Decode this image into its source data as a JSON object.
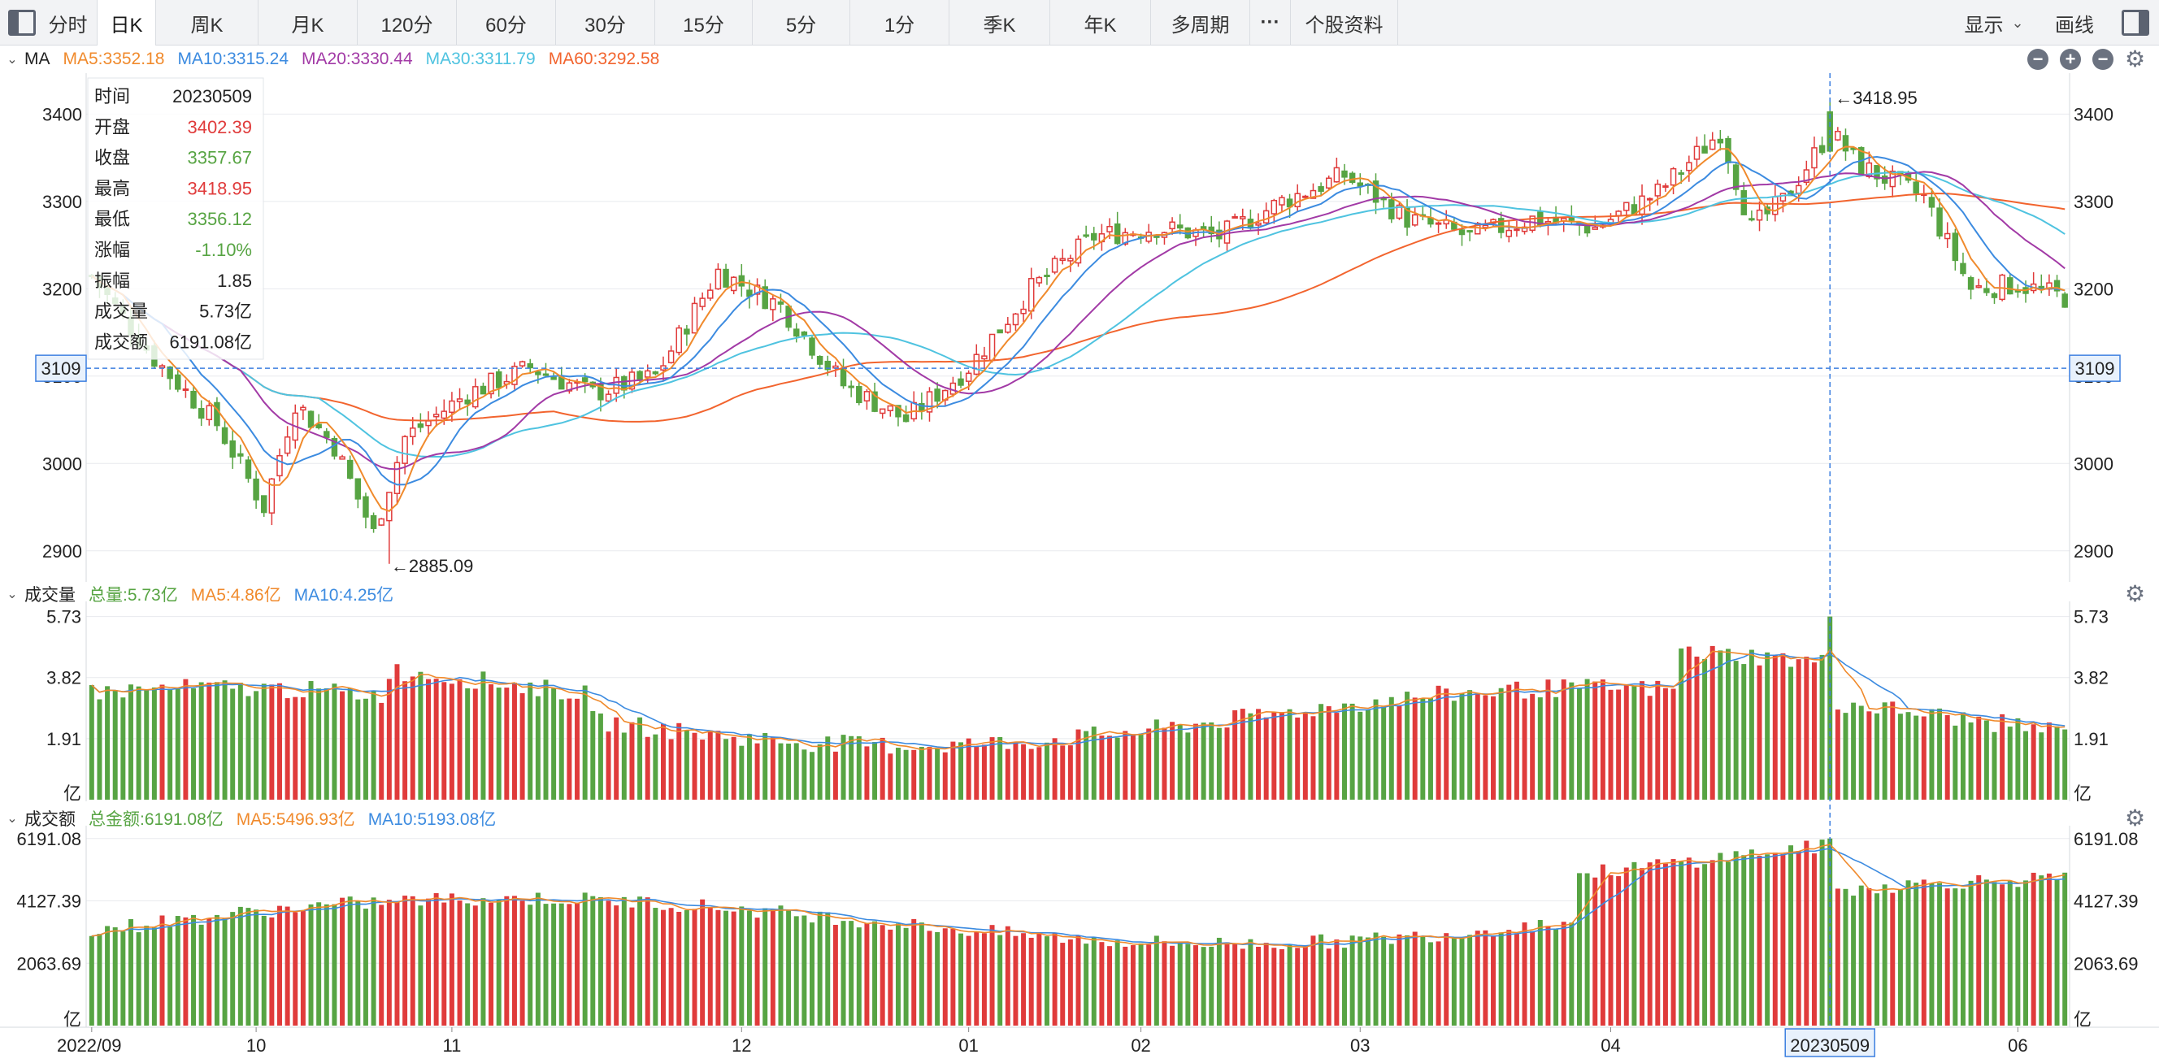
{
  "toolbar": {
    "tabs": [
      {
        "label": "分时"
      },
      {
        "label": "日K",
        "active": true
      },
      {
        "label": "周K"
      },
      {
        "label": "月K"
      },
      {
        "label": "120分"
      },
      {
        "label": "60分"
      },
      {
        "label": "30分"
      },
      {
        "label": "15分"
      },
      {
        "label": "5分"
      },
      {
        "label": "1分"
      },
      {
        "label": "季K"
      },
      {
        "label": "年K"
      },
      {
        "label": "多周期"
      },
      {
        "label": "···"
      },
      {
        "label": "个股资料"
      }
    ],
    "display_label": "显示",
    "draw_label": "画线"
  },
  "colors": {
    "up": "#e03b3b",
    "down": "#57a443",
    "ma5": "#f08a2c",
    "ma10": "#3c8be0",
    "ma20": "#a23aa6",
    "ma30": "#4fc3e0",
    "ma60": "#f2642e",
    "crosshair": "#3c7fe0",
    "grid": "#e8eaee"
  },
  "price_panel": {
    "indicator": "MA",
    "legend": [
      {
        "text": "MA5:3352.18",
        "color": "ma5"
      },
      {
        "text": "MA10:3315.24",
        "color": "ma10"
      },
      {
        "text": "MA20:3330.44",
        "color": "ma20"
      },
      {
        "text": "MA30:3311.79",
        "color": "ma30"
      },
      {
        "text": "MA60:3292.58",
        "color": "ma60"
      }
    ],
    "y_ticks": [
      "3400",
      "3300",
      "3200",
      "3100",
      "3000",
      "2900"
    ],
    "crosshair_price": "3109",
    "high_label": "←3418.95",
    "low_label": "←2885.09",
    "info": [
      {
        "label": "时间",
        "value": "20230509",
        "color": "#222"
      },
      {
        "label": "开盘",
        "value": "3402.39",
        "color": "#e03b3b"
      },
      {
        "label": "收盘",
        "value": "3357.67",
        "color": "#57a443"
      },
      {
        "label": "最高",
        "value": "3418.95",
        "color": "#e03b3b"
      },
      {
        "label": "最低",
        "value": "3356.12",
        "color": "#57a443"
      },
      {
        "label": "涨幅",
        "value": "-1.10%",
        "color": "#57a443"
      },
      {
        "label": "振幅",
        "value": "1.85",
        "color": "#222"
      },
      {
        "label": "成交量",
        "value": "5.73亿",
        "color": "#222"
      },
      {
        "label": "成交额",
        "value": "6191.08亿",
        "color": "#222"
      }
    ]
  },
  "volume_panel": {
    "title": "成交量",
    "legend": [
      {
        "text": "总量:5.73亿",
        "color": "down"
      },
      {
        "text": "MA5:4.86亿",
        "color": "ma5"
      },
      {
        "text": "MA10:4.25亿",
        "color": "ma10"
      }
    ],
    "y_ticks": [
      "5.73",
      "3.82",
      "1.91",
      "亿"
    ]
  },
  "amount_panel": {
    "title": "成交额",
    "legend": [
      {
        "text": "总金额:6191.08亿",
        "color": "down"
      },
      {
        "text": "MA5:5496.93亿",
        "color": "ma5"
      },
      {
        "text": "MA10:5193.08亿",
        "color": "ma10"
      }
    ],
    "y_ticks": [
      "6191.08",
      "4127.39",
      "2063.69",
      "亿"
    ]
  },
  "x_axis": {
    "labels": [
      "2022/09",
      "10",
      "11",
      "12",
      "01",
      "02",
      "03",
      "04",
      "06"
    ],
    "crosshair_label": "20230509"
  },
  "chart_data": {
    "type": "candlestick",
    "ylim": [
      2870,
      3445
    ],
    "series_note": "",
    "waypoints": [
      [
        0,
        3215
      ],
      [
        8,
        3120
      ],
      [
        16,
        3045
      ],
      [
        22,
        2950
      ],
      [
        26,
        3070
      ],
      [
        31,
        3020
      ],
      [
        36,
        2920
      ],
      [
        40,
        3030
      ],
      [
        48,
        3080
      ],
      [
        56,
        3110
      ],
      [
        64,
        3080
      ],
      [
        72,
        3100
      ],
      [
        80,
        3220
      ],
      [
        88,
        3180
      ],
      [
        96,
        3090
      ],
      [
        104,
        3050
      ],
      [
        112,
        3110
      ],
      [
        120,
        3200
      ],
      [
        128,
        3260
      ],
      [
        136,
        3270
      ],
      [
        144,
        3260
      ],
      [
        152,
        3300
      ],
      [
        160,
        3330
      ],
      [
        168,
        3280
      ],
      [
        176,
        3260
      ],
      [
        184,
        3280
      ],
      [
        192,
        3270
      ],
      [
        200,
        3310
      ],
      [
        208,
        3380
      ],
      [
        212,
        3270
      ],
      [
        216,
        3300
      ],
      [
        222,
        3380
      ],
      [
        226,
        3340
      ],
      [
        234,
        3305
      ],
      [
        240,
        3200
      ],
      [
        246,
        3205
      ],
      [
        252,
        3190
      ]
    ],
    "x_label_index": [
      0,
      21,
      46,
      83,
      112,
      134,
      162,
      194,
      246
    ],
    "crosshair_index": 222,
    "high_index": 222,
    "low_index": 38,
    "low_value": 2885.09,
    "high_value": 3418.95
  }
}
